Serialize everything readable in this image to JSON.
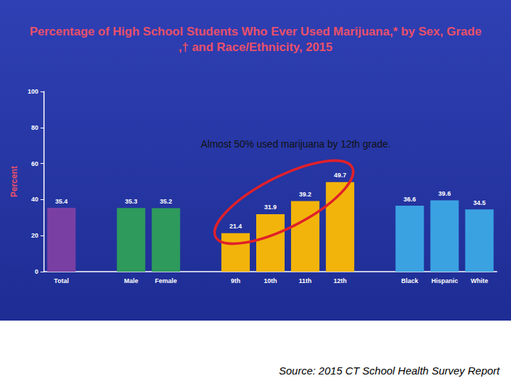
{
  "chart_data": {
    "type": "bar",
    "title": "Percentage of High School Students Who Ever Used Marijuana,* by Sex, Grade,† and Race/Ethnicity, 2015",
    "ylabel": "Percent",
    "annotation": "Almost 50% used marijuana by 12th grade.",
    "source": "Source: 2015 CT School Health Survey Report",
    "categories": [
      "Total",
      null,
      "Male",
      "Female",
      null,
      "9th",
      "10th",
      "11th",
      "12th",
      null,
      "Black",
      "Hispanic",
      "White"
    ],
    "values": [
      35.4,
      null,
      35.3,
      35.2,
      null,
      21.4,
      31.9,
      39.2,
      49.7,
      null,
      36.6,
      39.6,
      34.5
    ],
    "colors": [
      "#7a3fa3",
      null,
      "#2e9a5c",
      "#2e9a5c",
      null,
      "#f2b40a",
      "#f2b40a",
      "#f2b40a",
      "#f2b40a",
      null,
      "#3ba2e2",
      "#3ba2e2",
      "#3ba2e2"
    ],
    "ylim": [
      0,
      100
    ],
    "yticks": [
      0,
      20,
      40,
      60,
      80,
      100
    ],
    "grid": false,
    "data_labels": true
  }
}
